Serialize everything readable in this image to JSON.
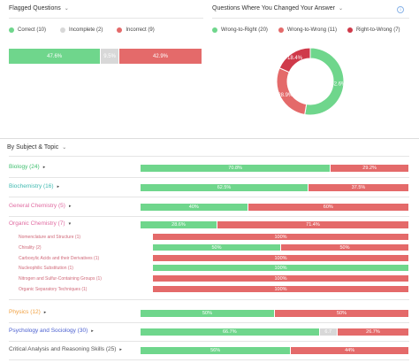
{
  "colors": {
    "correct": "#6fd68c",
    "incomplete": "#d8d8d8",
    "incorrect": "#e46a6a",
    "wrong_to_right": "#6fd68c",
    "wrong_to_wrong": "#e46a6a",
    "right_to_wrong": "#cf3a4a"
  },
  "flagged": {
    "title": "Flagged Questions",
    "legend": [
      {
        "label": "Correct (10)",
        "color": "#6fd68c"
      },
      {
        "label": "Incomplete (2)",
        "color": "#d8d8d8"
      },
      {
        "label": "Incorrect (9)",
        "color": "#e46a6a"
      }
    ],
    "bar": [
      {
        "label": "47.6%",
        "value": 47.6,
        "color": "#6fd68c"
      },
      {
        "label": "9.5%",
        "value": 9.5,
        "color": "#d8d8d8"
      },
      {
        "label": "42.9%",
        "value": 42.9,
        "color": "#e46a6a"
      }
    ]
  },
  "changed": {
    "title": "Questions Where You Changed Your Answer",
    "info_icon": "info-icon",
    "legend": [
      {
        "label": "Wrong-to-Right (20)",
        "color": "#6fd68c"
      },
      {
        "label": "Wrong-to-Wrong (11)",
        "color": "#e46a6a"
      },
      {
        "label": "Right-to-Wrong (7)",
        "color": "#cf3a4a"
      }
    ]
  },
  "chart_data": {
    "type": "pie",
    "categories": [
      "Wrong-to-Right",
      "Wrong-to-Wrong",
      "Right-to-Wrong"
    ],
    "values": [
      52.6,
      28.9,
      18.4
    ],
    "labels": [
      "52.6%",
      "28.9%",
      "18.4%"
    ],
    "colors": [
      "#6fd68c",
      "#e46a6a",
      "#cf3a4a"
    ]
  },
  "subjects": {
    "title": "By Subject & Topic",
    "rows": [
      {
        "label": "Biology (24)",
        "color": "#3fbf6f",
        "caret": "▸",
        "segs": [
          {
            "label": "70.8%",
            "value": 70.8,
            "color": "#6fd68c"
          },
          {
            "label": "29.2%",
            "value": 29.2,
            "color": "#e46a6a"
          }
        ]
      },
      {
        "label": "Biochemistry (16)",
        "color": "#3fb9b0",
        "caret": "▸",
        "segs": [
          {
            "label": "62.5%",
            "value": 62.5,
            "color": "#6fd68c"
          },
          {
            "label": "37.5%",
            "value": 37.5,
            "color": "#e46a6a"
          }
        ]
      },
      {
        "label": "General Chemistry (5)",
        "color": "#e06aa0",
        "caret": "▸",
        "segs": [
          {
            "label": "40%",
            "value": 40,
            "color": "#6fd68c"
          },
          {
            "label": "60%",
            "value": 60,
            "color": "#e46a6a"
          }
        ]
      },
      {
        "label": "Organic Chemistry (7)",
        "color": "#e06aa0",
        "caret": "▾",
        "segs": [
          {
            "label": "28.6%",
            "value": 28.6,
            "color": "#6fd68c"
          },
          {
            "label": "71.4%",
            "value": 71.4,
            "color": "#e46a6a"
          }
        ]
      },
      {
        "label": "Physics (12)",
        "color": "#f0a040",
        "caret": "▸",
        "segs": [
          {
            "label": "50%",
            "value": 50,
            "color": "#6fd68c"
          },
          {
            "label": "50%",
            "value": 50,
            "color": "#e46a6a"
          }
        ]
      },
      {
        "label": "Psychology and Sociology (30)",
        "color": "#4a5fd0",
        "caret": "▸",
        "segs": [
          {
            "label": "66.7%",
            "value": 66.7,
            "color": "#6fd68c"
          },
          {
            "label": "6.7",
            "value": 6.7,
            "color": "#d8d8d8"
          },
          {
            "label": "26.7%",
            "value": 26.7,
            "color": "#e46a6a"
          }
        ]
      },
      {
        "label": "Critical Analysis and Reasoning Skills (25)",
        "color": "#555555",
        "caret": "▸",
        "segs": [
          {
            "label": "56%",
            "value": 56,
            "color": "#6fd68c"
          },
          {
            "label": "44%",
            "value": 44,
            "color": "#e46a6a"
          }
        ]
      }
    ],
    "organic_topics": [
      {
        "label": "Nomenclature and Structure (1)",
        "segs": [
          {
            "label": "100%",
            "value": 100,
            "color": "#e46a6a"
          }
        ]
      },
      {
        "label": "Chirality (2)",
        "segs": [
          {
            "label": "50%",
            "value": 50,
            "color": "#6fd68c"
          },
          {
            "label": "50%",
            "value": 50,
            "color": "#e46a6a"
          }
        ]
      },
      {
        "label": "Carboxylic Acids and their Derivatives (1)",
        "segs": [
          {
            "label": "100%",
            "value": 100,
            "color": "#e46a6a"
          }
        ]
      },
      {
        "label": "Nucleophilic Substitution (1)",
        "segs": [
          {
            "label": "100%",
            "value": 100,
            "color": "#6fd68c"
          }
        ]
      },
      {
        "label": "Nitrogen and Sulfur-Containing Groups (1)",
        "segs": [
          {
            "label": "100%",
            "value": 100,
            "color": "#e46a6a"
          }
        ]
      },
      {
        "label": "Organic Separatory Techniques (1)",
        "segs": [
          {
            "label": "100%",
            "value": 100,
            "color": "#e46a6a"
          }
        ]
      }
    ]
  }
}
